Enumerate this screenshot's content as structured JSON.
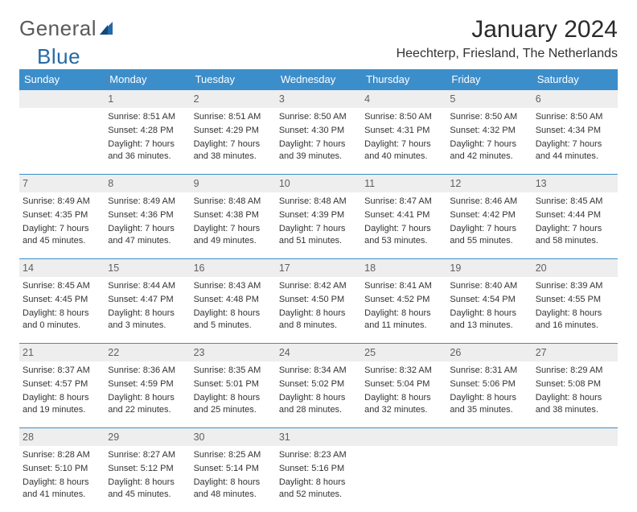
{
  "brand": {
    "word1": "General",
    "word2": "Blue"
  },
  "title": "January 2024",
  "subtitle": "Heechterp, Friesland, The Netherlands",
  "colors": {
    "header_bg": "#3c8ecb",
    "header_text": "#ffffff",
    "daynum_bg": "#eeeeee",
    "border": "#3c8ecb",
    "page_bg": "#ffffff",
    "text": "#333333",
    "brand_gray": "#5a5a5a",
    "brand_blue": "#2569a8"
  },
  "weekdays": [
    "Sunday",
    "Monday",
    "Tuesday",
    "Wednesday",
    "Thursday",
    "Friday",
    "Saturday"
  ],
  "weeks": [
    [
      {
        "day": "",
        "sunrise": "",
        "sunset": "",
        "daylight": ""
      },
      {
        "day": "1",
        "sunrise": "Sunrise: 8:51 AM",
        "sunset": "Sunset: 4:28 PM",
        "daylight": "Daylight: 7 hours and 36 minutes."
      },
      {
        "day": "2",
        "sunrise": "Sunrise: 8:51 AM",
        "sunset": "Sunset: 4:29 PM",
        "daylight": "Daylight: 7 hours and 38 minutes."
      },
      {
        "day": "3",
        "sunrise": "Sunrise: 8:50 AM",
        "sunset": "Sunset: 4:30 PM",
        "daylight": "Daylight: 7 hours and 39 minutes."
      },
      {
        "day": "4",
        "sunrise": "Sunrise: 8:50 AM",
        "sunset": "Sunset: 4:31 PM",
        "daylight": "Daylight: 7 hours and 40 minutes."
      },
      {
        "day": "5",
        "sunrise": "Sunrise: 8:50 AM",
        "sunset": "Sunset: 4:32 PM",
        "daylight": "Daylight: 7 hours and 42 minutes."
      },
      {
        "day": "6",
        "sunrise": "Sunrise: 8:50 AM",
        "sunset": "Sunset: 4:34 PM",
        "daylight": "Daylight: 7 hours and 44 minutes."
      }
    ],
    [
      {
        "day": "7",
        "sunrise": "Sunrise: 8:49 AM",
        "sunset": "Sunset: 4:35 PM",
        "daylight": "Daylight: 7 hours and 45 minutes."
      },
      {
        "day": "8",
        "sunrise": "Sunrise: 8:49 AM",
        "sunset": "Sunset: 4:36 PM",
        "daylight": "Daylight: 7 hours and 47 minutes."
      },
      {
        "day": "9",
        "sunrise": "Sunrise: 8:48 AM",
        "sunset": "Sunset: 4:38 PM",
        "daylight": "Daylight: 7 hours and 49 minutes."
      },
      {
        "day": "10",
        "sunrise": "Sunrise: 8:48 AM",
        "sunset": "Sunset: 4:39 PM",
        "daylight": "Daylight: 7 hours and 51 minutes."
      },
      {
        "day": "11",
        "sunrise": "Sunrise: 8:47 AM",
        "sunset": "Sunset: 4:41 PM",
        "daylight": "Daylight: 7 hours and 53 minutes."
      },
      {
        "day": "12",
        "sunrise": "Sunrise: 8:46 AM",
        "sunset": "Sunset: 4:42 PM",
        "daylight": "Daylight: 7 hours and 55 minutes."
      },
      {
        "day": "13",
        "sunrise": "Sunrise: 8:45 AM",
        "sunset": "Sunset: 4:44 PM",
        "daylight": "Daylight: 7 hours and 58 minutes."
      }
    ],
    [
      {
        "day": "14",
        "sunrise": "Sunrise: 8:45 AM",
        "sunset": "Sunset: 4:45 PM",
        "daylight": "Daylight: 8 hours and 0 minutes."
      },
      {
        "day": "15",
        "sunrise": "Sunrise: 8:44 AM",
        "sunset": "Sunset: 4:47 PM",
        "daylight": "Daylight: 8 hours and 3 minutes."
      },
      {
        "day": "16",
        "sunrise": "Sunrise: 8:43 AM",
        "sunset": "Sunset: 4:48 PM",
        "daylight": "Daylight: 8 hours and 5 minutes."
      },
      {
        "day": "17",
        "sunrise": "Sunrise: 8:42 AM",
        "sunset": "Sunset: 4:50 PM",
        "daylight": "Daylight: 8 hours and 8 minutes."
      },
      {
        "day": "18",
        "sunrise": "Sunrise: 8:41 AM",
        "sunset": "Sunset: 4:52 PM",
        "daylight": "Daylight: 8 hours and 11 minutes."
      },
      {
        "day": "19",
        "sunrise": "Sunrise: 8:40 AM",
        "sunset": "Sunset: 4:54 PM",
        "daylight": "Daylight: 8 hours and 13 minutes."
      },
      {
        "day": "20",
        "sunrise": "Sunrise: 8:39 AM",
        "sunset": "Sunset: 4:55 PM",
        "daylight": "Daylight: 8 hours and 16 minutes."
      }
    ],
    [
      {
        "day": "21",
        "sunrise": "Sunrise: 8:37 AM",
        "sunset": "Sunset: 4:57 PM",
        "daylight": "Daylight: 8 hours and 19 minutes."
      },
      {
        "day": "22",
        "sunrise": "Sunrise: 8:36 AM",
        "sunset": "Sunset: 4:59 PM",
        "daylight": "Daylight: 8 hours and 22 minutes."
      },
      {
        "day": "23",
        "sunrise": "Sunrise: 8:35 AM",
        "sunset": "Sunset: 5:01 PM",
        "daylight": "Daylight: 8 hours and 25 minutes."
      },
      {
        "day": "24",
        "sunrise": "Sunrise: 8:34 AM",
        "sunset": "Sunset: 5:02 PM",
        "daylight": "Daylight: 8 hours and 28 minutes."
      },
      {
        "day": "25",
        "sunrise": "Sunrise: 8:32 AM",
        "sunset": "Sunset: 5:04 PM",
        "daylight": "Daylight: 8 hours and 32 minutes."
      },
      {
        "day": "26",
        "sunrise": "Sunrise: 8:31 AM",
        "sunset": "Sunset: 5:06 PM",
        "daylight": "Daylight: 8 hours and 35 minutes."
      },
      {
        "day": "27",
        "sunrise": "Sunrise: 8:29 AM",
        "sunset": "Sunset: 5:08 PM",
        "daylight": "Daylight: 8 hours and 38 minutes."
      }
    ],
    [
      {
        "day": "28",
        "sunrise": "Sunrise: 8:28 AM",
        "sunset": "Sunset: 5:10 PM",
        "daylight": "Daylight: 8 hours and 41 minutes."
      },
      {
        "day": "29",
        "sunrise": "Sunrise: 8:27 AM",
        "sunset": "Sunset: 5:12 PM",
        "daylight": "Daylight: 8 hours and 45 minutes."
      },
      {
        "day": "30",
        "sunrise": "Sunrise: 8:25 AM",
        "sunset": "Sunset: 5:14 PM",
        "daylight": "Daylight: 8 hours and 48 minutes."
      },
      {
        "day": "31",
        "sunrise": "Sunrise: 8:23 AM",
        "sunset": "Sunset: 5:16 PM",
        "daylight": "Daylight: 8 hours and 52 minutes."
      },
      {
        "day": "",
        "sunrise": "",
        "sunset": "",
        "daylight": ""
      },
      {
        "day": "",
        "sunrise": "",
        "sunset": "",
        "daylight": ""
      },
      {
        "day": "",
        "sunrise": "",
        "sunset": "",
        "daylight": ""
      }
    ]
  ]
}
